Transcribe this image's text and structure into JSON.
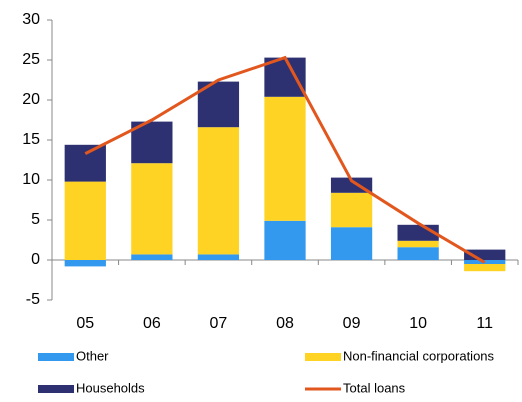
{
  "chart_data": {
    "type": "bar",
    "categories": [
      "05",
      "06",
      "07",
      "08",
      "09",
      "10",
      "11"
    ],
    "series": [
      {
        "name": "Other",
        "color": "#3399ee",
        "values": [
          -0.8,
          0.7,
          0.7,
          4.9,
          4.1,
          1.6,
          -0.5
        ]
      },
      {
        "name": "Non-financial corporations",
        "color": "#ffd324",
        "values": [
          9.8,
          11.4,
          15.9,
          15.5,
          4.3,
          0.8,
          -0.9
        ]
      },
      {
        "name": "Households",
        "color": "#2e3171",
        "values": [
          4.6,
          5.2,
          5.7,
          4.9,
          1.9,
          2.0,
          1.3
        ]
      },
      {
        "name": "Total loans",
        "type": "line",
        "color": "#e2571e",
        "values": [
          13.3,
          17.5,
          22.5,
          25.3,
          9.9,
          4.6,
          -0.3
        ]
      }
    ],
    "ylim": [
      -5,
      30
    ],
    "yticks": [
      -5,
      0,
      5,
      10,
      15,
      20,
      25,
      30
    ],
    "grid": false
  }
}
